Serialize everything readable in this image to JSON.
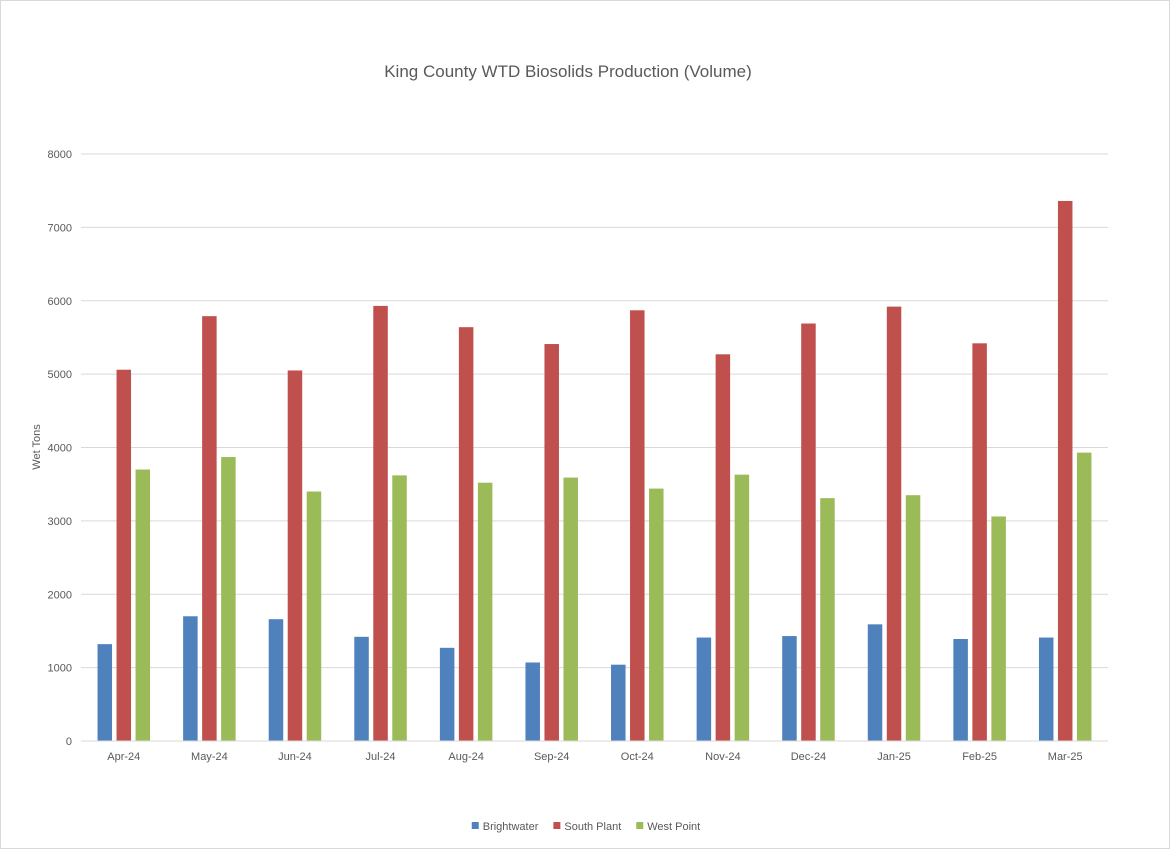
{
  "chart_data": {
    "type": "bar",
    "title": "King County WTD Biosolids Production (Volume)",
    "xlabel": "",
    "ylabel": "Wet Tons",
    "ylim": [
      0,
      8000
    ],
    "yticks": [
      "0",
      "1000",
      "2000",
      "3000",
      "4000",
      "5000",
      "6000",
      "7000",
      "8000"
    ],
    "grid": true,
    "legend_position": "bottom",
    "categories": [
      "Apr-24",
      "May-24",
      "Jun-24",
      "Jul-24",
      "Aug-24",
      "Sep-24",
      "Oct-24",
      "Nov-24",
      "Dec-24",
      "Jan-25",
      "Feb-25",
      "Mar-25"
    ],
    "series": [
      {
        "name": "Brightwater",
        "color": "#4f81bd",
        "values": [
          1320,
          1700,
          1660,
          1420,
          1270,
          1070,
          1040,
          1410,
          1430,
          1590,
          1390,
          1410
        ]
      },
      {
        "name": "South Plant",
        "color": "#c0504d",
        "values": [
          5060,
          5790,
          5050,
          5930,
          5640,
          5410,
          5870,
          5270,
          5690,
          5920,
          5420,
          7360
        ]
      },
      {
        "name": "West Point",
        "color": "#9bbb59",
        "values": [
          3700,
          3870,
          3400,
          3620,
          3520,
          3590,
          3440,
          3630,
          3310,
          3350,
          3060,
          3930
        ]
      }
    ]
  }
}
